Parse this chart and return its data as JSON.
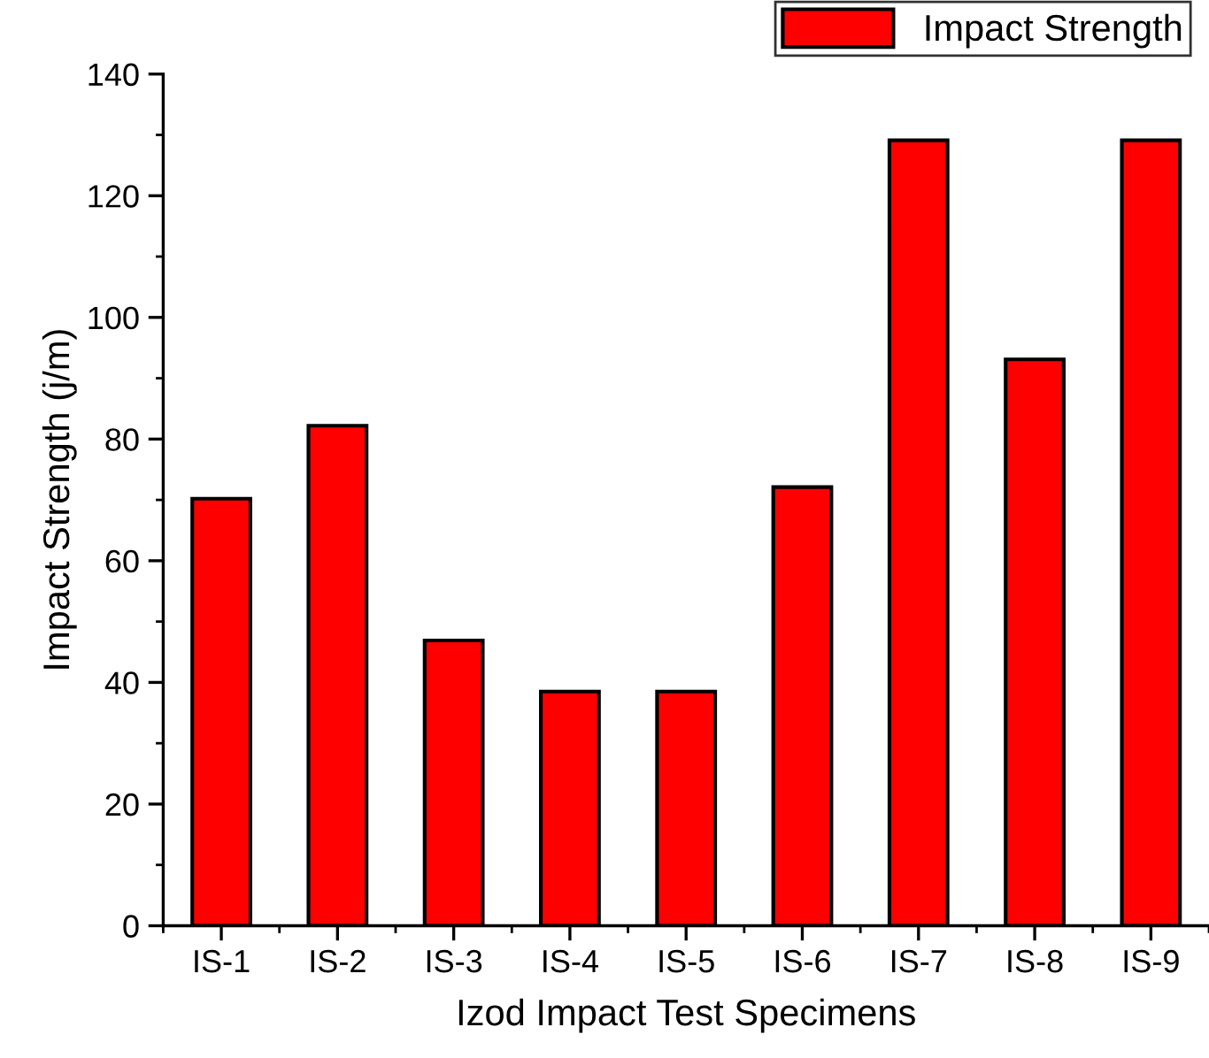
{
  "chart_data": {
    "type": "bar",
    "xlabel": "Izod Impact Test Specimens",
    "ylabel": "Impact Strength (j/m)",
    "categories": [
      "IS-1",
      "IS-2",
      "IS-3",
      "IS-4",
      "IS-5",
      "IS-6",
      "IS-7",
      "IS-8",
      "IS-9"
    ],
    "series": [
      {
        "name": "Impact Strength",
        "color": "#ff0000",
        "values": [
          70.2,
          82.2,
          46.9,
          38.5,
          38.5,
          72.1,
          129.1,
          93.1,
          129.1
        ]
      }
    ],
    "ylim": [
      0,
      140
    ],
    "yticks": [
      0,
      20,
      40,
      60,
      80,
      100,
      120,
      140
    ],
    "grid": false,
    "legend": "top right"
  }
}
